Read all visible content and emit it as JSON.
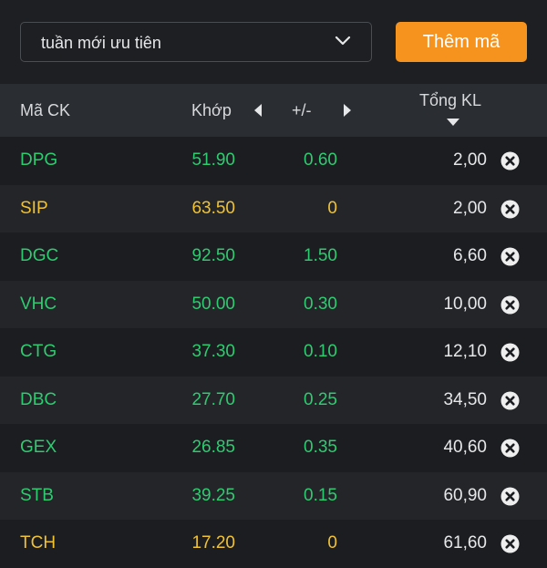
{
  "toolbar": {
    "watchlist_name": "tuần mới ưu tiên",
    "add_button_label": "Thêm mã"
  },
  "table": {
    "columns": {
      "symbol": "Mã CK",
      "price": "Khớp",
      "change": "+/-",
      "volume": "Tổng KL"
    },
    "rows": [
      {
        "symbol": "DPG",
        "price": "51.90",
        "change": "0.60",
        "volume": "2,00",
        "status": "up"
      },
      {
        "symbol": "SIP",
        "price": "63.50",
        "change": "0",
        "volume": "2,00",
        "status": "ref"
      },
      {
        "symbol": "DGC",
        "price": "92.50",
        "change": "1.50",
        "volume": "6,60",
        "status": "up"
      },
      {
        "symbol": "VHC",
        "price": "50.00",
        "change": "0.30",
        "volume": "10,00",
        "status": "up"
      },
      {
        "symbol": "CTG",
        "price": "37.30",
        "change": "0.10",
        "volume": "12,10",
        "status": "up"
      },
      {
        "symbol": "DBC",
        "price": "27.70",
        "change": "0.25",
        "volume": "34,50",
        "status": "up"
      },
      {
        "symbol": "GEX",
        "price": "26.85",
        "change": "0.35",
        "volume": "40,60",
        "status": "up"
      },
      {
        "symbol": "STB",
        "price": "39.25",
        "change": "0.15",
        "volume": "60,90",
        "status": "up"
      },
      {
        "symbol": "TCH",
        "price": "17.20",
        "change": "0",
        "volume": "61,60",
        "status": "ref"
      }
    ]
  },
  "colors": {
    "accent": "#f6921e",
    "up": "#2ecc71",
    "reference": "#f1c232",
    "background": "#1d1f22"
  },
  "icons": {
    "dropdown": "chevron-down-icon",
    "scroll_left": "caret-left-icon",
    "scroll_right": "caret-right-icon",
    "sort": "sort-descending-icon",
    "remove": "close-circle-icon"
  }
}
